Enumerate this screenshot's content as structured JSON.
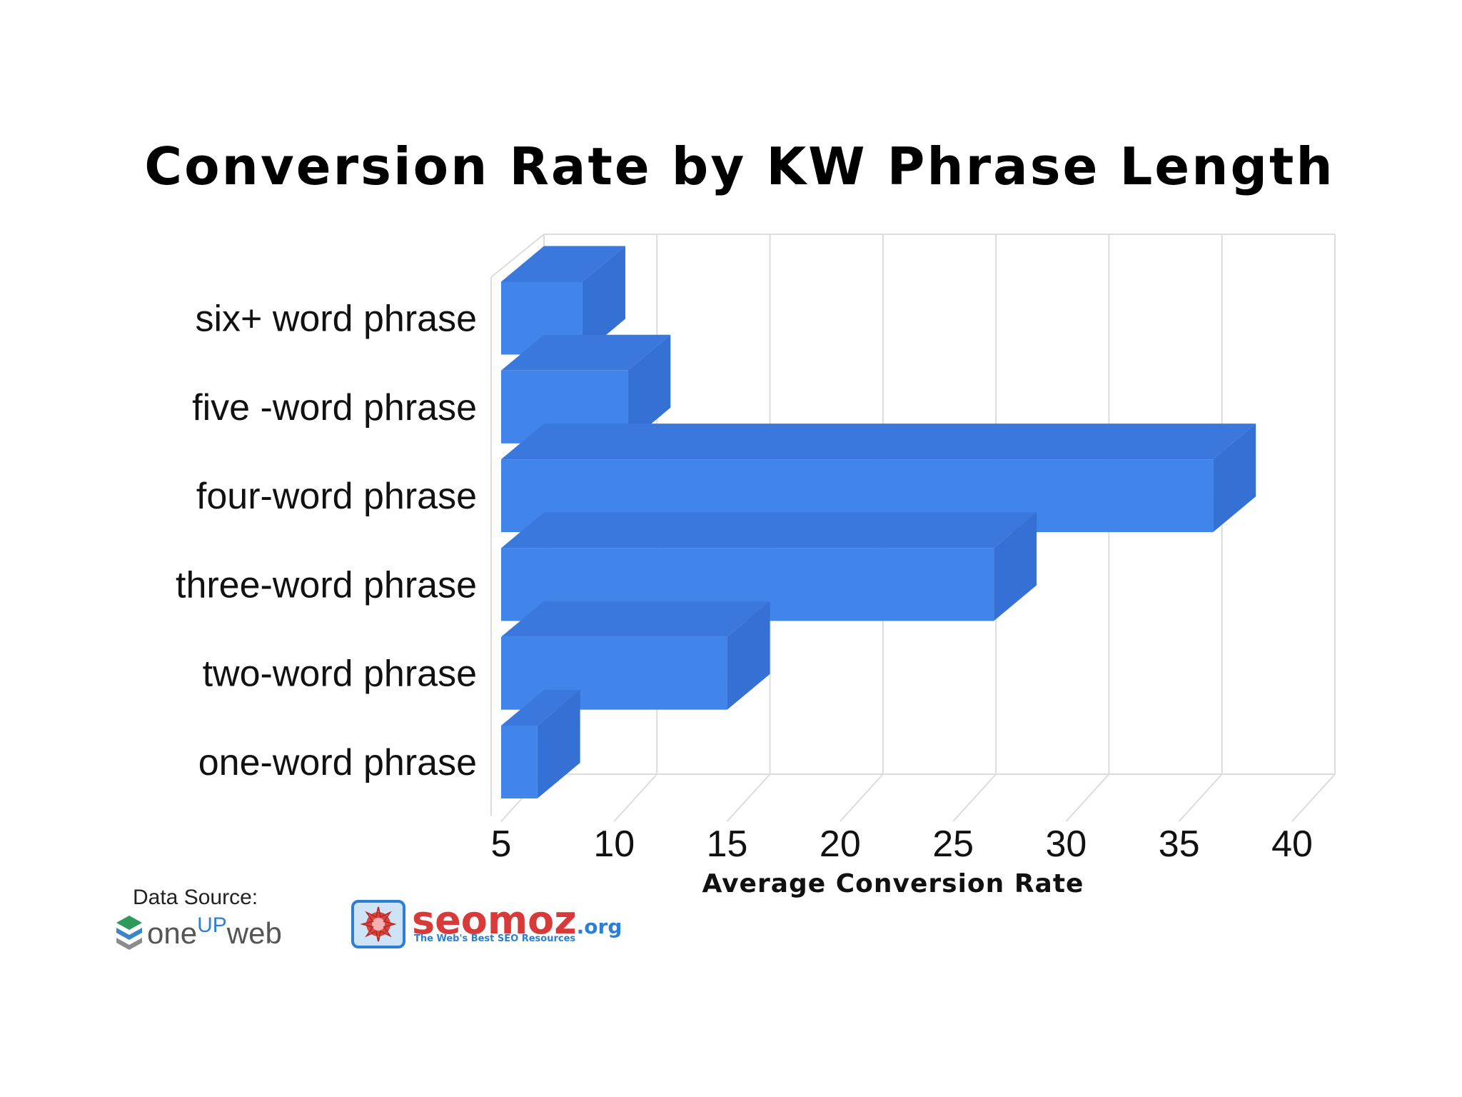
{
  "chart_data": {
    "type": "bar",
    "orientation": "horizontal",
    "style": "3d",
    "title": "Conversion Rate by KW Phrase Length",
    "xlabel": "Average Conversion Rate",
    "ylabel": "",
    "categories": [
      "one-word phrase",
      "two-word phrase",
      "three-word phrase",
      "four-word phrase",
      "five -word phrase",
      "six+ word phrase"
    ],
    "values": [
      6.6,
      15.0,
      26.8,
      36.5,
      10.6,
      8.6
    ],
    "xlim": [
      5,
      40
    ],
    "xticks": [
      "5",
      "10",
      "15",
      "20",
      "25",
      "30",
      "35",
      "40"
    ],
    "grid": true,
    "bar_color": "#4285ea",
    "bar_top_color": "#3a78dd",
    "bar_side_color": "#3570d4"
  },
  "source": {
    "label": "Data Source:",
    "logo1": {
      "pre": "one",
      "up": "UP",
      "post": "web"
    },
    "logo2": {
      "name": "seomoz",
      "suffix": ".org",
      "tagline": "The Web's Best SEO Resources"
    }
  }
}
